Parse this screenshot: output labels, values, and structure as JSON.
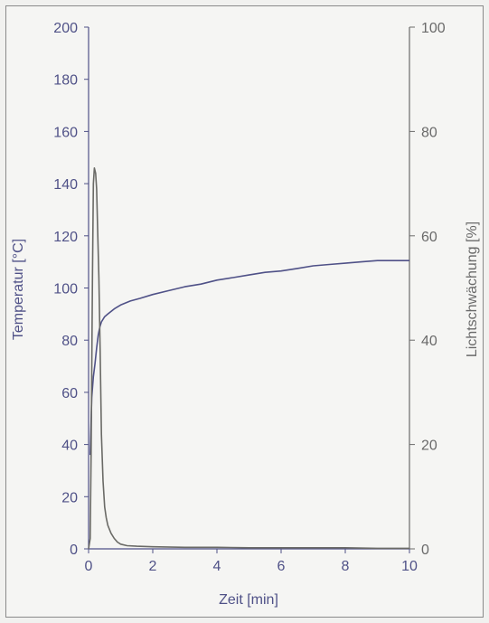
{
  "chart_data": {
    "type": "line",
    "title": "",
    "xlabel": "Zeit [min]",
    "ylabel_left": "Temperatur [°C]",
    "ylabel_right": "Lichtschwächung [%]",
    "xlim": [
      0,
      10
    ],
    "ylim_left": [
      0,
      200
    ],
    "ylim_right": [
      0,
      100
    ],
    "x_ticks": [
      0,
      2,
      4,
      6,
      8,
      10
    ],
    "y_left_ticks": [
      0,
      20,
      40,
      60,
      80,
      100,
      120,
      140,
      160,
      180,
      200
    ],
    "y_right_ticks": [
      0,
      20,
      40,
      60,
      80,
      100
    ],
    "grid": false,
    "legend": "none",
    "colors": {
      "left_axis": "#4f5187",
      "right_axis": "#6a6a6a",
      "temperature": "#4f5187",
      "light": "#6a6a66"
    },
    "series": [
      {
        "axis": "left",
        "x": [
          0.05,
          0.1,
          0.15,
          0.2,
          0.25,
          0.3,
          0.35,
          0.4,
          0.5,
          0.6,
          0.8,
          1.0,
          1.3,
          1.6,
          2.0,
          2.5,
          3.0,
          3.5,
          4.0,
          4.5,
          5.0,
          5.5,
          6.0,
          6.5,
          7.0,
          7.5,
          8.0,
          8.5,
          9.0,
          9.5,
          10.0
        ],
        "values": [
          36,
          58,
          66,
          71,
          77,
          82,
          85,
          87,
          89,
          90,
          92,
          93.5,
          95,
          96,
          97.5,
          99,
          100.5,
          101.5,
          103,
          104,
          105,
          106,
          106.5,
          107.5,
          108.5,
          109,
          109.5,
          110,
          110.5,
          110.5,
          110.5
        ]
      },
      {
        "axis": "right",
        "x": [
          0,
          0.05,
          0.08,
          0.12,
          0.15,
          0.18,
          0.22,
          0.25,
          0.28,
          0.32,
          0.36,
          0.4,
          0.45,
          0.5,
          0.55,
          0.6,
          0.7,
          0.8,
          0.9,
          1.0,
          1.2,
          1.5,
          2.0,
          3.0,
          4.0,
          5.0,
          6.0,
          7.0,
          8.0,
          9.0,
          10.0
        ],
        "values": [
          0,
          2,
          18,
          52,
          70,
          73,
          72,
          69,
          62,
          52,
          38,
          22,
          13,
          8,
          6,
          4.5,
          3,
          2,
          1.3,
          0.9,
          0.6,
          0.5,
          0.4,
          0.3,
          0.3,
          0.2,
          0.2,
          0.2,
          0.2,
          0.1,
          0.1
        ]
      }
    ]
  }
}
